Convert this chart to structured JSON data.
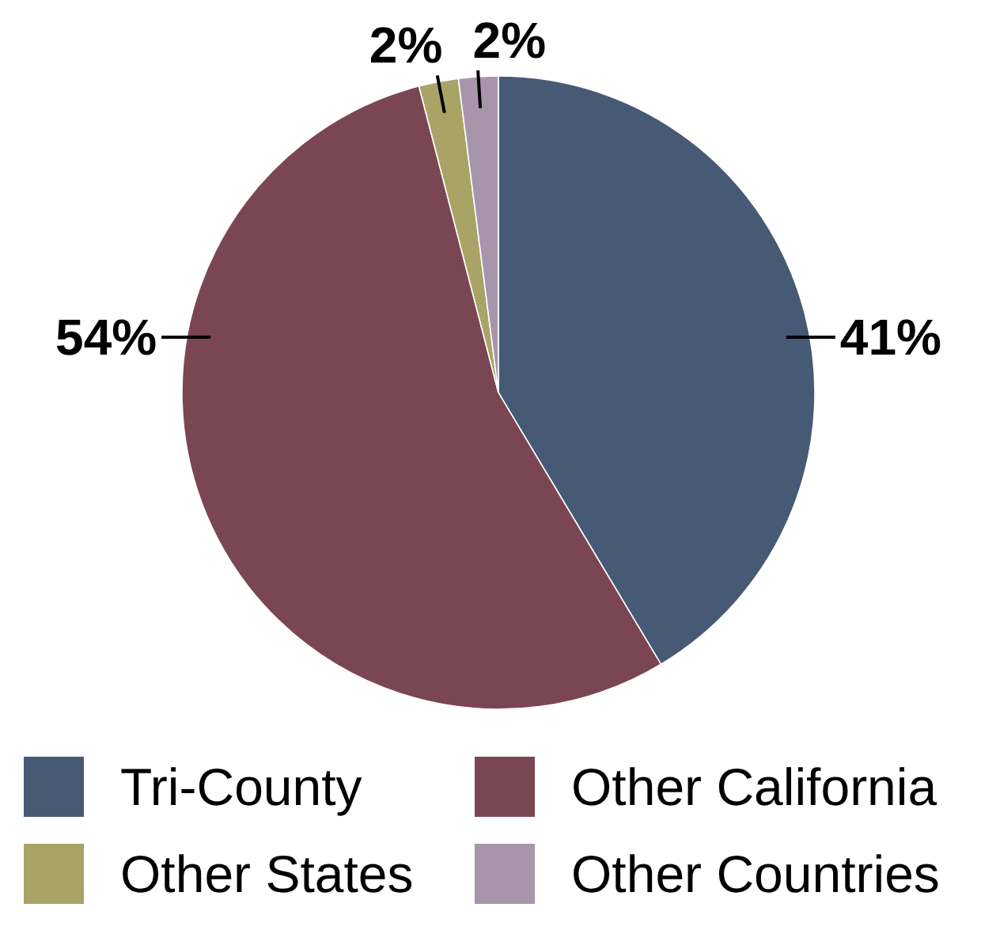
{
  "chart_data": {
    "type": "pie",
    "categories": [
      "Tri-County",
      "Other California",
      "Other States",
      "Other Countries"
    ],
    "values": [
      41,
      54,
      2,
      2
    ],
    "colors": [
      "#465a75",
      "#7b4653",
      "#a9a466",
      "#a895ab"
    ],
    "value_labels": [
      "41%",
      "54%",
      "2%",
      "2%"
    ],
    "legend": "bottom"
  }
}
